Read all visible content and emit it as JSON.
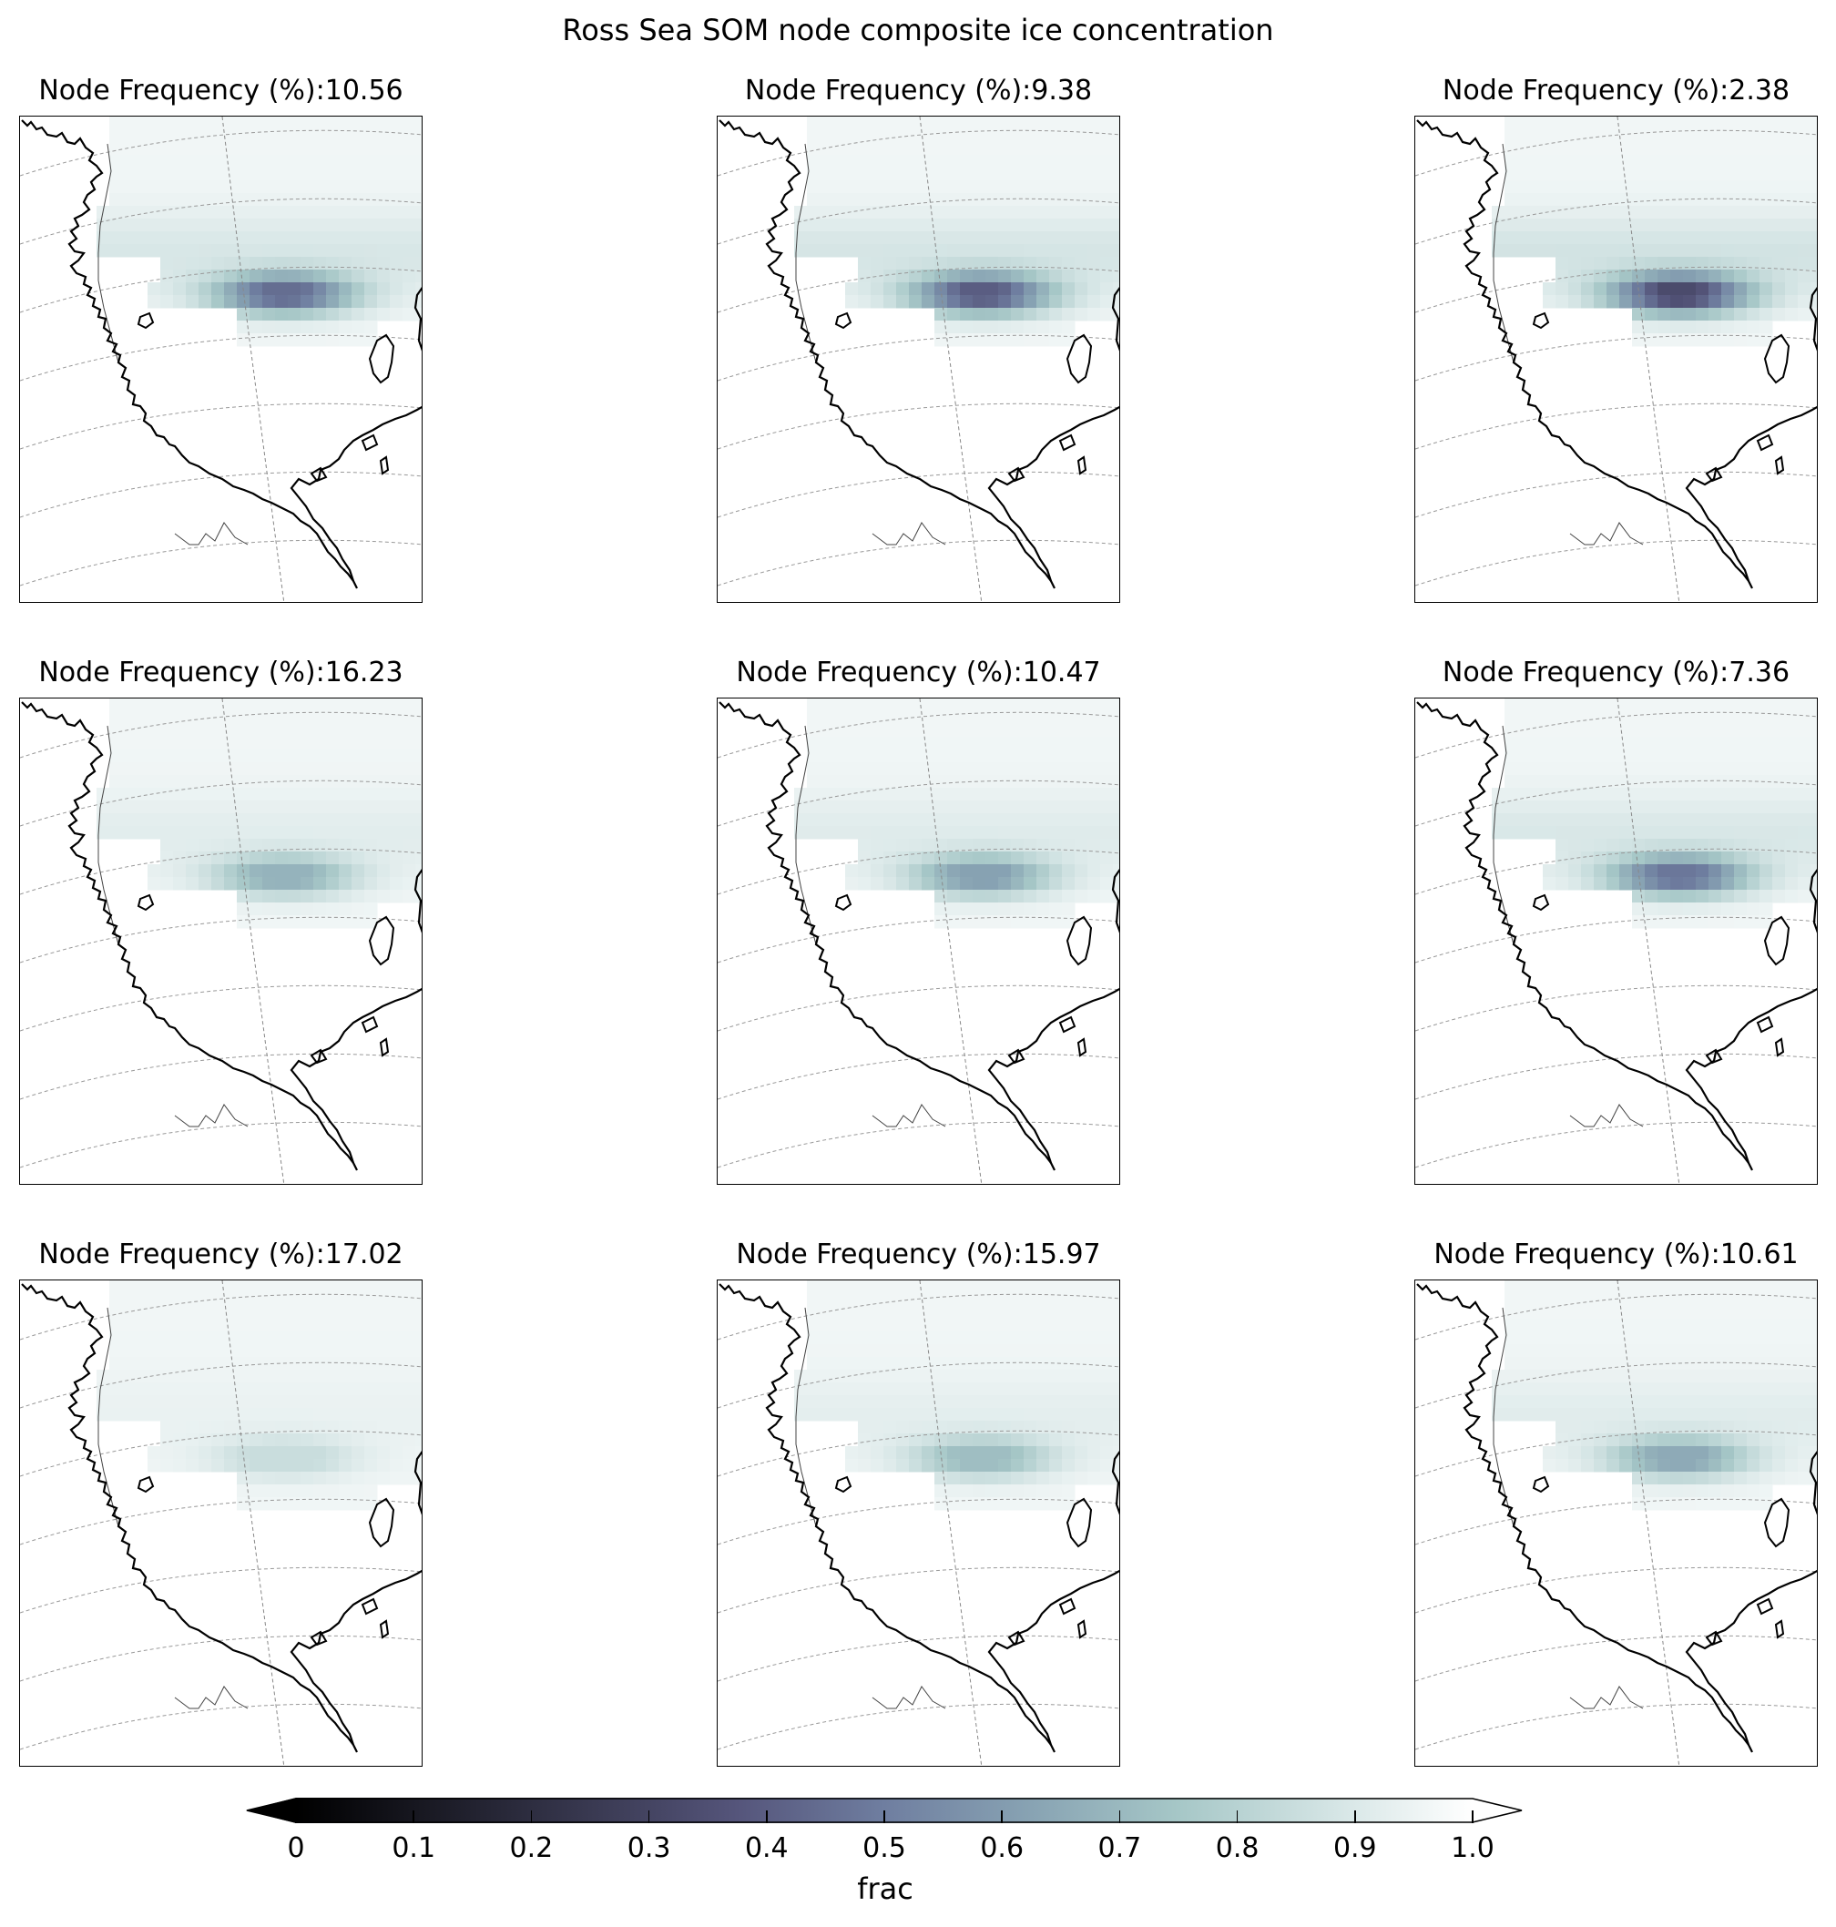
{
  "figure": {
    "title": "Ross Sea SOM node composite ice concentration"
  },
  "chart_data": {
    "type": "heatmap",
    "title": "Ross Sea SOM node composite ice concentration",
    "grid": true,
    "layout": "3x3 small multiples, polar stereographic maps of the Ross Sea",
    "colormap": {
      "name": "bone",
      "colors": [
        "#000000",
        "#1c1c27",
        "#393951",
        "#55557b",
        "#6f7ea0",
        "#88a3b3",
        "#a6c7c7",
        "#d2e3e3",
        "#ffffff"
      ],
      "extend": "both"
    },
    "colorbar": {
      "label": "frac",
      "min": 0,
      "max": 1.0,
      "ticks": [
        0,
        0.1,
        0.2,
        0.3,
        0.4,
        0.5,
        0.6,
        0.7,
        0.8,
        0.9,
        1.0
      ],
      "tick_labels": [
        "0",
        "0.1",
        "0.2",
        "0.3",
        "0.4",
        "0.5",
        "0.6",
        "0.7",
        "0.8",
        "0.9",
        "1.0"
      ]
    },
    "panels": [
      {
        "title": "Node Frequency (%):10.56",
        "frequency": 10.56,
        "min_ice_frac": 0.45
      },
      {
        "title": "Node Frequency (%):9.38",
        "frequency": 9.38,
        "min_ice_frac": 0.4
      },
      {
        "title": "Node Frequency (%):2.38",
        "frequency": 2.38,
        "min_ice_frac": 0.33
      },
      {
        "title": "Node Frequency (%):16.23",
        "frequency": 16.23,
        "min_ice_frac": 0.68
      },
      {
        "title": "Node Frequency (%):10.47",
        "frequency": 10.47,
        "min_ice_frac": 0.62
      },
      {
        "title": "Node Frequency (%):7.36",
        "frequency": 7.36,
        "min_ice_frac": 0.48
      },
      {
        "title": "Node Frequency (%):17.02",
        "frequency": 17.02,
        "min_ice_frac": 0.85
      },
      {
        "title": "Node Frequency (%):15.97",
        "frequency": 15.97,
        "min_ice_frac": 0.72
      },
      {
        "title": "Node Frequency (%):10.61",
        "frequency": 10.61,
        "min_ice_frac": 0.65
      }
    ]
  }
}
